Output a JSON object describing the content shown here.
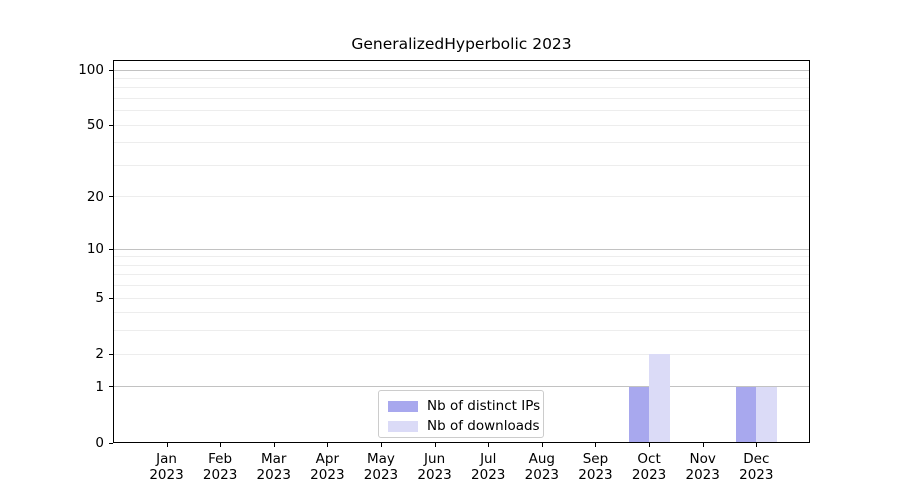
{
  "title": "GeneralizedHyperbolic 2023",
  "chart_data": {
    "type": "bar",
    "title": "GeneralizedHyperbolic 2023",
    "categories": [
      "Jan 2023",
      "Feb 2023",
      "Mar 2023",
      "Apr 2023",
      "May 2023",
      "Jun 2023",
      "Jul 2023",
      "Aug 2023",
      "Sep 2023",
      "Oct 2023",
      "Nov 2023",
      "Dec 2023"
    ],
    "months": [
      "Jan",
      "Feb",
      "Mar",
      "Apr",
      "May",
      "Jun",
      "Jul",
      "Aug",
      "Sep",
      "Oct",
      "Nov",
      "Dec"
    ],
    "year": "2023",
    "series": [
      {
        "name": "Nb of distinct IPs",
        "color": "#a8a8ee",
        "values": [
          0,
          0,
          0,
          0,
          0,
          0,
          0,
          0,
          0,
          1,
          0,
          1
        ]
      },
      {
        "name": "Nb of downloads",
        "color": "#dbdbf7",
        "values": [
          0,
          0,
          0,
          0,
          0,
          0,
          0,
          0,
          0,
          2,
          0,
          1
        ]
      }
    ],
    "y_ticks": [
      0,
      1,
      2,
      5,
      10,
      20,
      50,
      100
    ],
    "y_minor_gridlines": [
      2,
      3,
      4,
      5,
      6,
      7,
      8,
      9,
      20,
      30,
      40,
      50,
      60,
      70,
      80,
      90
    ],
    "y_major_gridlines": [
      1,
      10,
      100
    ],
    "yscale": "log1p",
    "ylim": [
      0,
      113
    ],
    "grid": "horizontal, major and minor",
    "legend_position": "lower center inside plot",
    "colors": {
      "major_grid": "#c2c2c2",
      "minor_grid": "#ededed",
      "axis": "#000000"
    }
  }
}
